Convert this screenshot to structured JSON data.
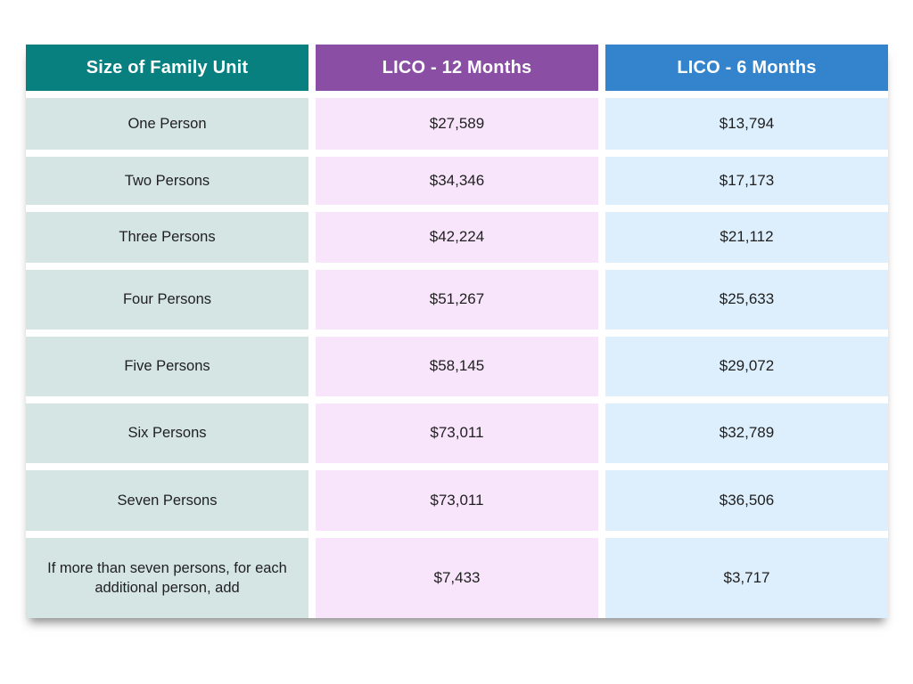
{
  "table": {
    "headers": [
      {
        "label": "Size of Family Unit",
        "bg": "#088080"
      },
      {
        "label": "LICO - 12 Months",
        "bg": "#8a4fa5"
      },
      {
        "label": "LICO - 6 Months",
        "bg": "#3384cc"
      }
    ],
    "cell_colors": {
      "family": "#d5e5e4",
      "lico12": "#f8e5fb",
      "lico6": "#ddeefc"
    },
    "rows": [
      {
        "family": "One Person",
        "lico12": "$27,589",
        "lico6": "$13,794"
      },
      {
        "family": "Two Persons",
        "lico12": "$34,346",
        "lico6": "$17,173"
      },
      {
        "family": "Three Persons",
        "lico12": "$42,224",
        "lico6": "$21,112"
      },
      {
        "family": "Four Persons",
        "lico12": "$51,267",
        "lico6": "$25,633"
      },
      {
        "family": "Five Persons",
        "lico12": "$58,145",
        "lico6": "$29,072"
      },
      {
        "family": "Six Persons",
        "lico12": "$73,011",
        "lico6": "$32,789"
      },
      {
        "family": "Seven Persons",
        "lico12": "$73,011",
        "lico6": "$36,506"
      },
      {
        "family": "If more than seven persons, for each additional person, add",
        "lico12": "$7,433",
        "lico6": "$3,717"
      }
    ]
  },
  "chart_data": {
    "type": "table",
    "title": "",
    "columns": [
      "Size of Family Unit",
      "LICO - 12 Months",
      "LICO - 6 Months"
    ],
    "rows": [
      [
        "One Person",
        27589,
        13794
      ],
      [
        "Two Persons",
        34346,
        17173
      ],
      [
        "Three Persons",
        42224,
        21112
      ],
      [
        "Four Persons",
        51267,
        25633
      ],
      [
        "Five Persons",
        58145,
        29072
      ],
      [
        "Six Persons",
        73011,
        32789
      ],
      [
        "Seven Persons",
        73011,
        36506
      ],
      [
        "If more than seven persons, for each additional person, add",
        7433,
        3717
      ]
    ],
    "legend_position": "none",
    "grid": false
  }
}
